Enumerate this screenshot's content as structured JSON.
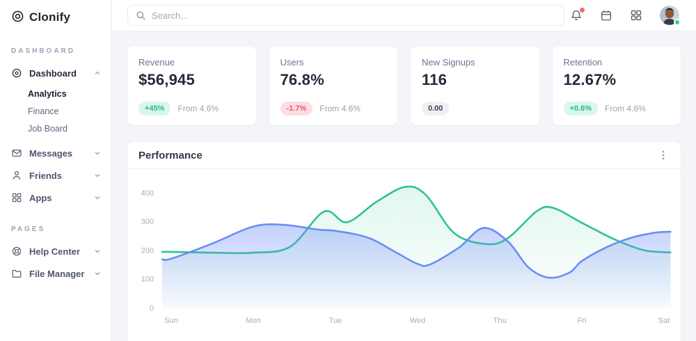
{
  "brand": {
    "name": "Clonify"
  },
  "header": {
    "search_placeholder": "Search..."
  },
  "icons": [
    "clonify-logo-icon",
    "search-icon",
    "bell-icon",
    "calendar-icon",
    "apps-grid-icon",
    "avatar",
    "dashboard-icon",
    "mail-icon",
    "user-icon",
    "grid-icon",
    "lifebuoy-icon",
    "folder-icon",
    "chevron-up-icon",
    "chevron-down-icon",
    "kebab-menu-icon"
  ],
  "colors": {
    "accent_green": "#2dc38e",
    "accent_blue": "#6a8df5",
    "badge_positive_bg": "#d9f7ea",
    "badge_positive_text": "#25ba84",
    "badge_negative_bg": "#fbdde2",
    "badge_negative_text": "#e65667",
    "badge_neutral_bg": "#eef0f4",
    "badge_neutral_text": "#3e4456",
    "notification_dot": "#f46a6a",
    "online_status": "#2ecc8e"
  },
  "sidebar": {
    "sections": [
      {
        "label": "DASHBOARD",
        "items": [
          {
            "label": "Dashboard",
            "icon": "dashboard-icon",
            "expanded": true,
            "children": [
              {
                "label": "Analytics",
                "active": true
              },
              {
                "label": "Finance",
                "active": false
              },
              {
                "label": "Job Board",
                "active": false
              }
            ]
          },
          {
            "label": "Messages",
            "icon": "mail-icon",
            "expanded": false
          },
          {
            "label": "Friends",
            "icon": "user-icon",
            "expanded": false
          },
          {
            "label": "Apps",
            "icon": "grid-icon",
            "expanded": false
          }
        ]
      },
      {
        "label": "PAGES",
        "items": [
          {
            "label": "Help Center",
            "icon": "lifebuoy-icon",
            "expanded": false
          },
          {
            "label": "File Manager",
            "icon": "folder-icon",
            "expanded": false
          }
        ]
      }
    ]
  },
  "cards": [
    {
      "title": "Revenue",
      "value": "$56,945",
      "badge": "+45%",
      "badge_type": "positive",
      "note": "From 4.6%"
    },
    {
      "title": "Users",
      "value": "76.8%",
      "badge": "-1.7%",
      "badge_type": "negative",
      "note": "From 4.6%"
    },
    {
      "title": "New Signups",
      "value": "116",
      "badge": "0.00",
      "badge_type": "neutral",
      "note": ""
    },
    {
      "title": "Retention",
      "value": "12.67%",
      "badge": "+0.6%",
      "badge_type": "positive",
      "note": "From 4.6%"
    }
  ],
  "panel": {
    "title": "Performance"
  },
  "chart_data": {
    "type": "area",
    "title": "Performance",
    "categories": [
      "Sun",
      "Mon",
      "Tue",
      "Wed",
      "Thu",
      "Fri",
      "Sat"
    ],
    "xlabel": "",
    "ylabel": "",
    "yticks": [
      0,
      100,
      200,
      300,
      400
    ],
    "ylim": [
      0,
      450
    ],
    "grid": false,
    "legend": false,
    "series": [
      {
        "name": "green",
        "color": "#2dc38e",
        "fill_from_opacity": 0.14,
        "fill_to_opacity": 0.01,
        "daily_values": [
          195,
          191,
          310,
          404,
          232,
          295,
          193
        ],
        "smooth_points": [
          [
            -0.11,
            194
          ],
          [
            0,
            194
          ],
          [
            0.5,
            191
          ],
          [
            1,
            191
          ],
          [
            1.45,
            212
          ],
          [
            1.86,
            334
          ],
          [
            2.14,
            297
          ],
          [
            2.5,
            368
          ],
          [
            2.85,
            420
          ],
          [
            3.1,
            392
          ],
          [
            3.45,
            258
          ],
          [
            3.84,
            221
          ],
          [
            4.1,
            242
          ],
          [
            4.45,
            335
          ],
          [
            4.65,
            347
          ],
          [
            5,
            295
          ],
          [
            5.4,
            237
          ],
          [
            5.75,
            200
          ],
          [
            6,
            193
          ],
          [
            6.08,
            192
          ]
        ]
      },
      {
        "name": "blue",
        "color": "#6a8df5",
        "fill_from_opacity": 0.4,
        "fill_to_opacity": 0.04,
        "daily_values": [
          170,
          282,
          267,
          152,
          235,
          162,
          264
        ],
        "smooth_points": [
          [
            -0.11,
            168
          ],
          [
            0,
            170
          ],
          [
            0.5,
            223
          ],
          [
            1,
            282
          ],
          [
            1.37,
            288
          ],
          [
            1.8,
            271
          ],
          [
            2,
            267
          ],
          [
            2.4,
            243
          ],
          [
            2.75,
            190
          ],
          [
            3,
            152
          ],
          [
            3.15,
            150
          ],
          [
            3.5,
            208
          ],
          [
            3.8,
            277
          ],
          [
            4.1,
            230
          ],
          [
            4.35,
            140
          ],
          [
            4.6,
            104
          ],
          [
            4.85,
            122
          ],
          [
            5,
            162
          ],
          [
            5.3,
            210
          ],
          [
            5.6,
            243
          ],
          [
            5.9,
            261
          ],
          [
            6.08,
            264
          ]
        ]
      }
    ]
  }
}
